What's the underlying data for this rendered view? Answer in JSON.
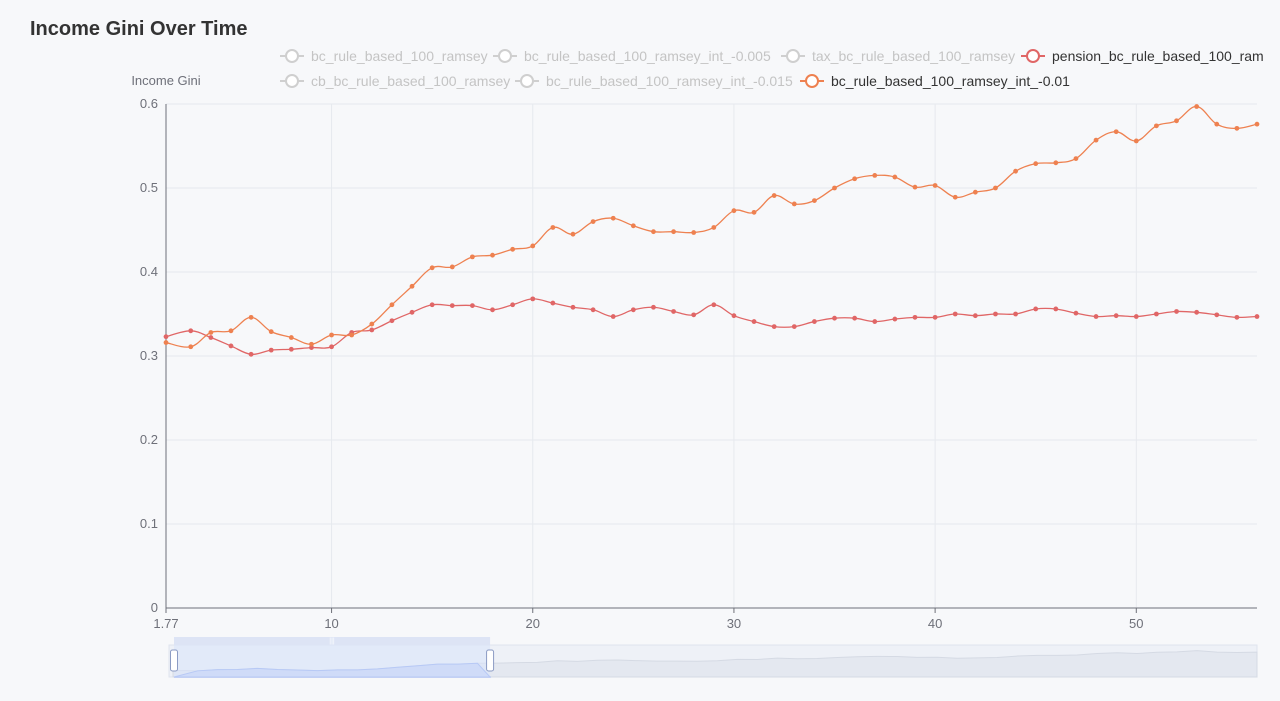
{
  "title": "Income Gini Over Time",
  "colors": {
    "series_a": "#e06666",
    "series_b": "#ee8150",
    "inactive": "#cfcfcf",
    "axis": "#6e7079",
    "grid": "#e6e9ee",
    "zoom_fill": "#d9e3fb",
    "zoom_line": "#a9bdf5"
  },
  "legend": [
    {
      "label": "bc_rule_based_100_ramsey",
      "active": false,
      "color": "#cfcfcf"
    },
    {
      "label": "bc_rule_based_100_ramsey_int_-0.005",
      "active": false,
      "color": "#cfcfcf"
    },
    {
      "label": "tax_bc_rule_based_100_ramsey",
      "active": false,
      "color": "#cfcfcf"
    },
    {
      "label": "pension_bc_rule_based_100_ram",
      "active": true,
      "color": "#e06666"
    },
    {
      "label": "cb_bc_rule_based_100_ramsey",
      "active": false,
      "color": "#cfcfcf"
    },
    {
      "label": "bc_rule_based_100_ramsey_int_-0.015",
      "active": false,
      "color": "#cfcfcf"
    },
    {
      "label": "bc_rule_based_100_ramsey_int_-0.01",
      "active": true,
      "color": "#ee8150"
    }
  ],
  "chart_data": {
    "type": "line",
    "title": "Income Gini Over Time",
    "ylabel": "Income Gini",
    "xlabel": "",
    "xlim": [
      1.77,
      56
    ],
    "ylim": [
      0,
      0.6
    ],
    "x_ticks": [
      "1.77",
      "10",
      "20",
      "30",
      "40",
      "50"
    ],
    "y_ticks": [
      "0",
      "0.1",
      "0.2",
      "0.3",
      "0.4",
      "0.5",
      "0.6"
    ],
    "grid": true,
    "legend_position": "top",
    "x": [
      1.77,
      3,
      4,
      5,
      6,
      7,
      8,
      9,
      10,
      11,
      12,
      13,
      14,
      15,
      16,
      17,
      18,
      19,
      20,
      21,
      22,
      23,
      24,
      25,
      26,
      27,
      28,
      29,
      30,
      31,
      32,
      33,
      34,
      35,
      36,
      37,
      38,
      39,
      40,
      41,
      42,
      43,
      44,
      45,
      46,
      47,
      48,
      49,
      50,
      51,
      52,
      53,
      54,
      55,
      56
    ],
    "series": [
      {
        "name": "pension_bc_rule_based_100_ram",
        "color": "#e06666",
        "values": [
          0.323,
          0.33,
          0.322,
          0.312,
          0.302,
          0.307,
          0.308,
          0.31,
          0.311,
          0.328,
          0.331,
          0.342,
          0.352,
          0.361,
          0.36,
          0.36,
          0.355,
          0.361,
          0.368,
          0.363,
          0.358,
          0.355,
          0.347,
          0.355,
          0.358,
          0.353,
          0.349,
          0.361,
          0.348,
          0.341,
          0.335,
          0.335,
          0.341,
          0.345,
          0.345,
          0.341,
          0.344,
          0.346,
          0.346,
          0.35,
          0.348,
          0.35,
          0.35,
          0.356,
          0.356,
          0.351,
          0.347,
          0.348,
          0.347,
          0.35,
          0.353,
          0.352,
          0.349,
          0.346,
          0.347
        ]
      },
      {
        "name": "bc_rule_based_100_ramsey_int_-0.01",
        "color": "#ee8150",
        "values": [
          0.316,
          0.311,
          0.328,
          0.33,
          0.346,
          0.329,
          0.322,
          0.314,
          0.325,
          0.325,
          0.338,
          0.361,
          0.383,
          0.405,
          0.406,
          0.418,
          0.42,
          0.427,
          0.431,
          0.453,
          0.445,
          0.46,
          0.464,
          0.455,
          0.448,
          0.448,
          0.447,
          0.453,
          0.473,
          0.471,
          0.491,
          0.481,
          0.485,
          0.5,
          0.511,
          0.515,
          0.513,
          0.501,
          0.503,
          0.489,
          0.495,
          0.5,
          0.52,
          0.529,
          0.53,
          0.535,
          0.557,
          0.567,
          0.556,
          0.574,
          0.58,
          0.597,
          0.576,
          0.571,
          0.576
        ]
      }
    ]
  },
  "datazoom": {
    "start_fraction": 0.0,
    "end_fraction": 0.285
  }
}
